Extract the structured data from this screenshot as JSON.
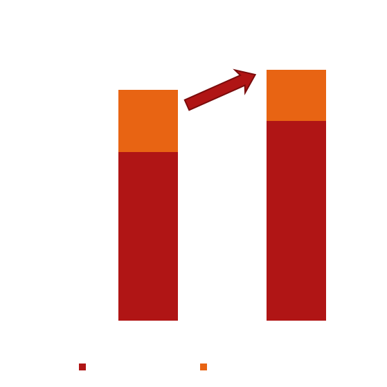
{
  "chart_data": {
    "type": "stacked_bar",
    "categories": [
      null,
      null
    ],
    "series": [
      {
        "color": "#b01515",
        "values": [
          244,
          289
        ]
      },
      {
        "color": "#e86413",
        "values": [
          90,
          74
        ]
      }
    ],
    "ylim": [
      0,
      400
    ]
  }
}
